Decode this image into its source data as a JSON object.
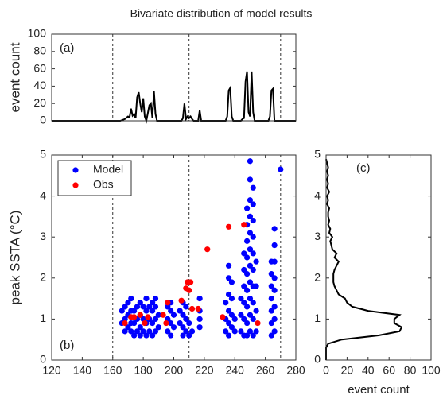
{
  "title": "Bivariate distribution of model results",
  "chart_data": [
    {
      "type": "line",
      "panel_label": "(a)",
      "ylabel": "event count",
      "xlim": [
        120,
        280
      ],
      "ylim": [
        0,
        100
      ],
      "yticks": [
        0,
        20,
        40,
        60,
        80,
        100
      ],
      "vlines": [
        160,
        210,
        270
      ],
      "color": "#000000",
      "x": [
        120,
        165,
        168,
        170,
        171,
        172,
        173,
        174,
        175,
        176,
        177,
        178,
        179,
        180,
        181,
        182,
        184,
        185,
        186,
        187,
        188,
        189,
        205,
        206,
        207,
        208,
        209,
        210,
        211,
        212,
        213,
        216,
        217,
        218,
        234,
        235,
        236,
        237,
        238,
        239,
        244,
        245,
        246,
        247,
        248,
        249,
        250,
        251,
        252,
        253,
        262,
        263,
        264,
        265,
        266,
        280
      ],
      "values": [
        0,
        0,
        2,
        5,
        4,
        14,
        6,
        8,
        3,
        27,
        33,
        20,
        10,
        26,
        5,
        0,
        18,
        20,
        3,
        34,
        8,
        0,
        0,
        3,
        20,
        2,
        5,
        3,
        5,
        2,
        0,
        0,
        12,
        0,
        0,
        5,
        35,
        38,
        5,
        0,
        0,
        2,
        3,
        45,
        57,
        10,
        5,
        57,
        10,
        0,
        0,
        5,
        35,
        37,
        0,
        0
      ]
    },
    {
      "type": "scatter",
      "panel_label": "(b)",
      "ylabel": "peak SSTA (°C)",
      "xlim": [
        120,
        280
      ],
      "ylim": [
        0,
        5
      ],
      "xticks": [
        120,
        140,
        160,
        180,
        200,
        220,
        240,
        260,
        280
      ],
      "yticks": [
        0,
        1,
        2,
        3,
        4,
        5
      ],
      "vlines": [
        160,
        210,
        270
      ],
      "legend": "upper left",
      "series": [
        {
          "name": "Model",
          "color": "#0000ff",
          "x": [
            166,
            166,
            168,
            168,
            168,
            170,
            170,
            170,
            172,
            172,
            172,
            172,
            174,
            174,
            174,
            176,
            176,
            176,
            178,
            178,
            178,
            178,
            180,
            180,
            180,
            182,
            182,
            182,
            182,
            184,
            184,
            184,
            186,
            186,
            186,
            186,
            188,
            188,
            188,
            188,
            190,
            190,
            196,
            196,
            196,
            198,
            198,
            198,
            198,
            200,
            200,
            204,
            204,
            206,
            206,
            206,
            206,
            208,
            208,
            208,
            210,
            210,
            212,
            217,
            217,
            217,
            217,
            234,
            234,
            234,
            236,
            236,
            236,
            236,
            236,
            236,
            238,
            238,
            238,
            238,
            240,
            240,
            244,
            244,
            244,
            246,
            246,
            246,
            246,
            246,
            246,
            248,
            248,
            248,
            248,
            248,
            248,
            248,
            248,
            248,
            250,
            250,
            250,
            250,
            250,
            250,
            250,
            250,
            250,
            250,
            250,
            252,
            252,
            252,
            252,
            252,
            252,
            252,
            252,
            252,
            252,
            254,
            254,
            254,
            254,
            264,
            264,
            264,
            264,
            264,
            264,
            264,
            266,
            266,
            266,
            266,
            266,
            266,
            266,
            266,
            270
          ],
          "values": [
            0.9,
            1.2,
            0.7,
            1.0,
            1.3,
            0.8,
            1.1,
            1.4,
            0.7,
            0.9,
            1.2,
            1.5,
            0.6,
            0.9,
            1.2,
            0.7,
            1.0,
            1.3,
            0.6,
            0.8,
            1.1,
            1.4,
            0.7,
            1.0,
            1.3,
            0.6,
            0.9,
            1.2,
            1.5,
            0.7,
            1.0,
            1.3,
            0.6,
            0.9,
            1.2,
            1.4,
            0.7,
            1.0,
            1.3,
            1.5,
            0.8,
            1.1,
            0.7,
            1.0,
            1.3,
            0.6,
            0.9,
            1.2,
            1.4,
            0.8,
            1.1,
            0.9,
            1.2,
            0.6,
            0.8,
            1.1,
            1.4,
            0.7,
            1.0,
            1.3,
            0.6,
            0.9,
            0.7,
            0.8,
            1.0,
            1.2,
            1.5,
            0.7,
            1.0,
            1.4,
            0.6,
            0.9,
            1.2,
            1.6,
            2.0,
            2.3,
            0.8,
            1.1,
            1.5,
            1.9,
            0.7,
            1.0,
            0.7,
            1.1,
            1.5,
            0.6,
            1.0,
            1.4,
            1.8,
            2.2,
            2.6,
            0.6,
            0.9,
            1.3,
            1.7,
            2.1,
            2.5,
            2.9,
            3.3,
            3.7,
            0.7,
            1.1,
            1.5,
            1.9,
            2.3,
            2.7,
            3.1,
            3.5,
            3.9,
            4.4,
            4.85,
            0.6,
            1.0,
            1.4,
            1.8,
            2.2,
            2.6,
            3.0,
            3.4,
            3.8,
            4.2,
            0.7,
            1.2,
            1.8,
            2.4,
            0.6,
            0.9,
            1.2,
            1.5,
            1.8,
            2.1,
            2.4,
            0.7,
            1.0,
            1.3,
            1.7,
            2.0,
            2.4,
            2.8,
            3.2,
            4.65
          ]
        },
        {
          "name": "Obs",
          "color": "#ff0000",
          "x": [
            168,
            172,
            174,
            178,
            181,
            183,
            193,
            195,
            196,
            205,
            208,
            209,
            210,
            211,
            212,
            216,
            222,
            232,
            236,
            246,
            255
          ],
          "values": [
            0.9,
            1.05,
            1.05,
            1.1,
            0.9,
            1.05,
            1.1,
            0.9,
            1.4,
            1.45,
            1.75,
            1.9,
            1.7,
            1.9,
            1.25,
            1.25,
            2.7,
            1.05,
            3.25,
            3.3,
            0.9
          ]
        }
      ]
    },
    {
      "type": "line",
      "panel_label": "(c)",
      "xlabel": "event count",
      "xlim": [
        0,
        100
      ],
      "ylim": [
        0,
        5
      ],
      "xticks": [
        0,
        20,
        40,
        60,
        80,
        100
      ],
      "yticks": [
        0,
        1,
        2,
        3,
        4,
        5
      ],
      "color": "#000000",
      "x": [
        0,
        0,
        2,
        15,
        50,
        70,
        72,
        65,
        65,
        70,
        40,
        25,
        20,
        18,
        12,
        10,
        8,
        7,
        7,
        7,
        8,
        10,
        12,
        8,
        10,
        6,
        5,
        4,
        6,
        3,
        4,
        2,
        3,
        2,
        2,
        3,
        1,
        2,
        1,
        3,
        1,
        2,
        1,
        2,
        1,
        2,
        1,
        0
      ],
      "values": [
        0,
        0.3,
        0.4,
        0.5,
        0.6,
        0.7,
        0.8,
        0.9,
        1.0,
        1.1,
        1.2,
        1.3,
        1.4,
        1.5,
        1.6,
        1.7,
        1.8,
        1.9,
        2.0,
        2.1,
        2.2,
        2.3,
        2.4,
        2.5,
        2.6,
        2.7,
        2.8,
        2.9,
        3.0,
        3.1,
        3.2,
        3.3,
        3.4,
        3.5,
        3.6,
        3.7,
        3.8,
        3.9,
        4.0,
        4.1,
        4.2,
        4.3,
        4.4,
        4.5,
        4.6,
        4.7,
        4.8,
        4.9
      ]
    }
  ]
}
